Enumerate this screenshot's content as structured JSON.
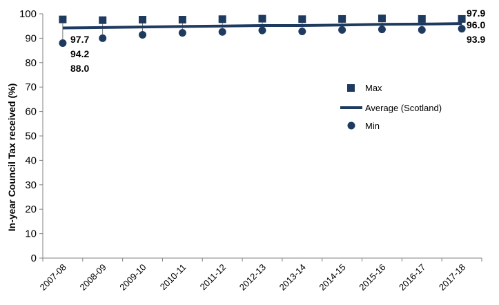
{
  "chart_data": {
    "type": "line",
    "title": "",
    "xlabel": "",
    "ylabel": "In-year Council Tax received (%)",
    "ylim": [
      0,
      100
    ],
    "yticks": [
      0,
      10,
      20,
      30,
      40,
      50,
      60,
      70,
      80,
      90,
      100
    ],
    "grid": false,
    "legend_position": "right",
    "categories": [
      "2007-08",
      "2008-09",
      "2009-10",
      "2010-11",
      "2011-12",
      "2012-13",
      "2013-14",
      "2014-15",
      "2015-16",
      "2016-17",
      "2017-18"
    ],
    "series": [
      {
        "name": "Max",
        "marker": "square",
        "color": "#1f3a5f",
        "values": [
          97.7,
          97.4,
          97.6,
          97.6,
          97.8,
          98.0,
          97.8,
          97.9,
          98.1,
          97.9,
          97.9
        ]
      },
      {
        "name": "Average (Scotland)",
        "marker": "line",
        "color": "#1f3a5f",
        "values": [
          94.2,
          94.4,
          94.6,
          94.8,
          95.0,
          95.2,
          95.2,
          95.4,
          95.7,
          95.8,
          96.0
        ]
      },
      {
        "name": "Min",
        "marker": "circle",
        "color": "#1f3a5f",
        "values": [
          88.0,
          90.0,
          91.4,
          92.2,
          92.6,
          93.2,
          92.8,
          93.4,
          93.6,
          93.4,
          93.9
        ]
      }
    ],
    "data_labels": {
      "first": {
        "max": "97.7",
        "avg": "94.2",
        "min": "88.0"
      },
      "last": {
        "max": "97.9",
        "avg": "96.0",
        "min": "93.9"
      }
    }
  }
}
